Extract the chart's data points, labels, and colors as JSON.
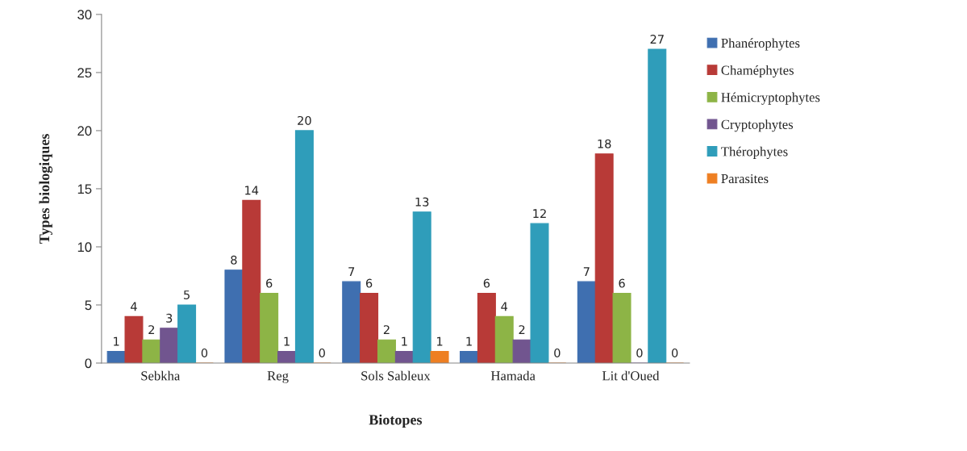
{
  "chart_data": {
    "type": "bar",
    "xlabel": "Biotopes",
    "ylabel": "Types biologiques",
    "categories": [
      "Sebkha",
      "Reg",
      "Sols Sableux",
      "Hamada",
      "Lit d'Oued"
    ],
    "series": [
      {
        "name": "Phanérophytes",
        "color": "#3f6fb0",
        "values": [
          1,
          8,
          7,
          1,
          7
        ]
      },
      {
        "name": "Chaméphytes",
        "color": "#b83a37",
        "values": [
          4,
          14,
          6,
          6,
          18
        ]
      },
      {
        "name": "Hémicryptophytes",
        "color": "#8db446",
        "values": [
          2,
          6,
          2,
          4,
          6
        ]
      },
      {
        "name": "Cryptophytes",
        "color": "#71558f",
        "values": [
          3,
          1,
          1,
          2,
          0
        ]
      },
      {
        "name": "Thérophytes",
        "color": "#2f9dba",
        "values": [
          5,
          20,
          13,
          12,
          27
        ]
      },
      {
        "name": "Parasites",
        "color": "#ee7f22",
        "values": [
          0,
          0,
          1,
          0,
          0
        ]
      }
    ],
    "ylim": [
      0,
      30
    ],
    "yticks": [
      0,
      5,
      10,
      15,
      20,
      25,
      30
    ],
    "grid": false,
    "legend": "right",
    "data_labels": true
  }
}
